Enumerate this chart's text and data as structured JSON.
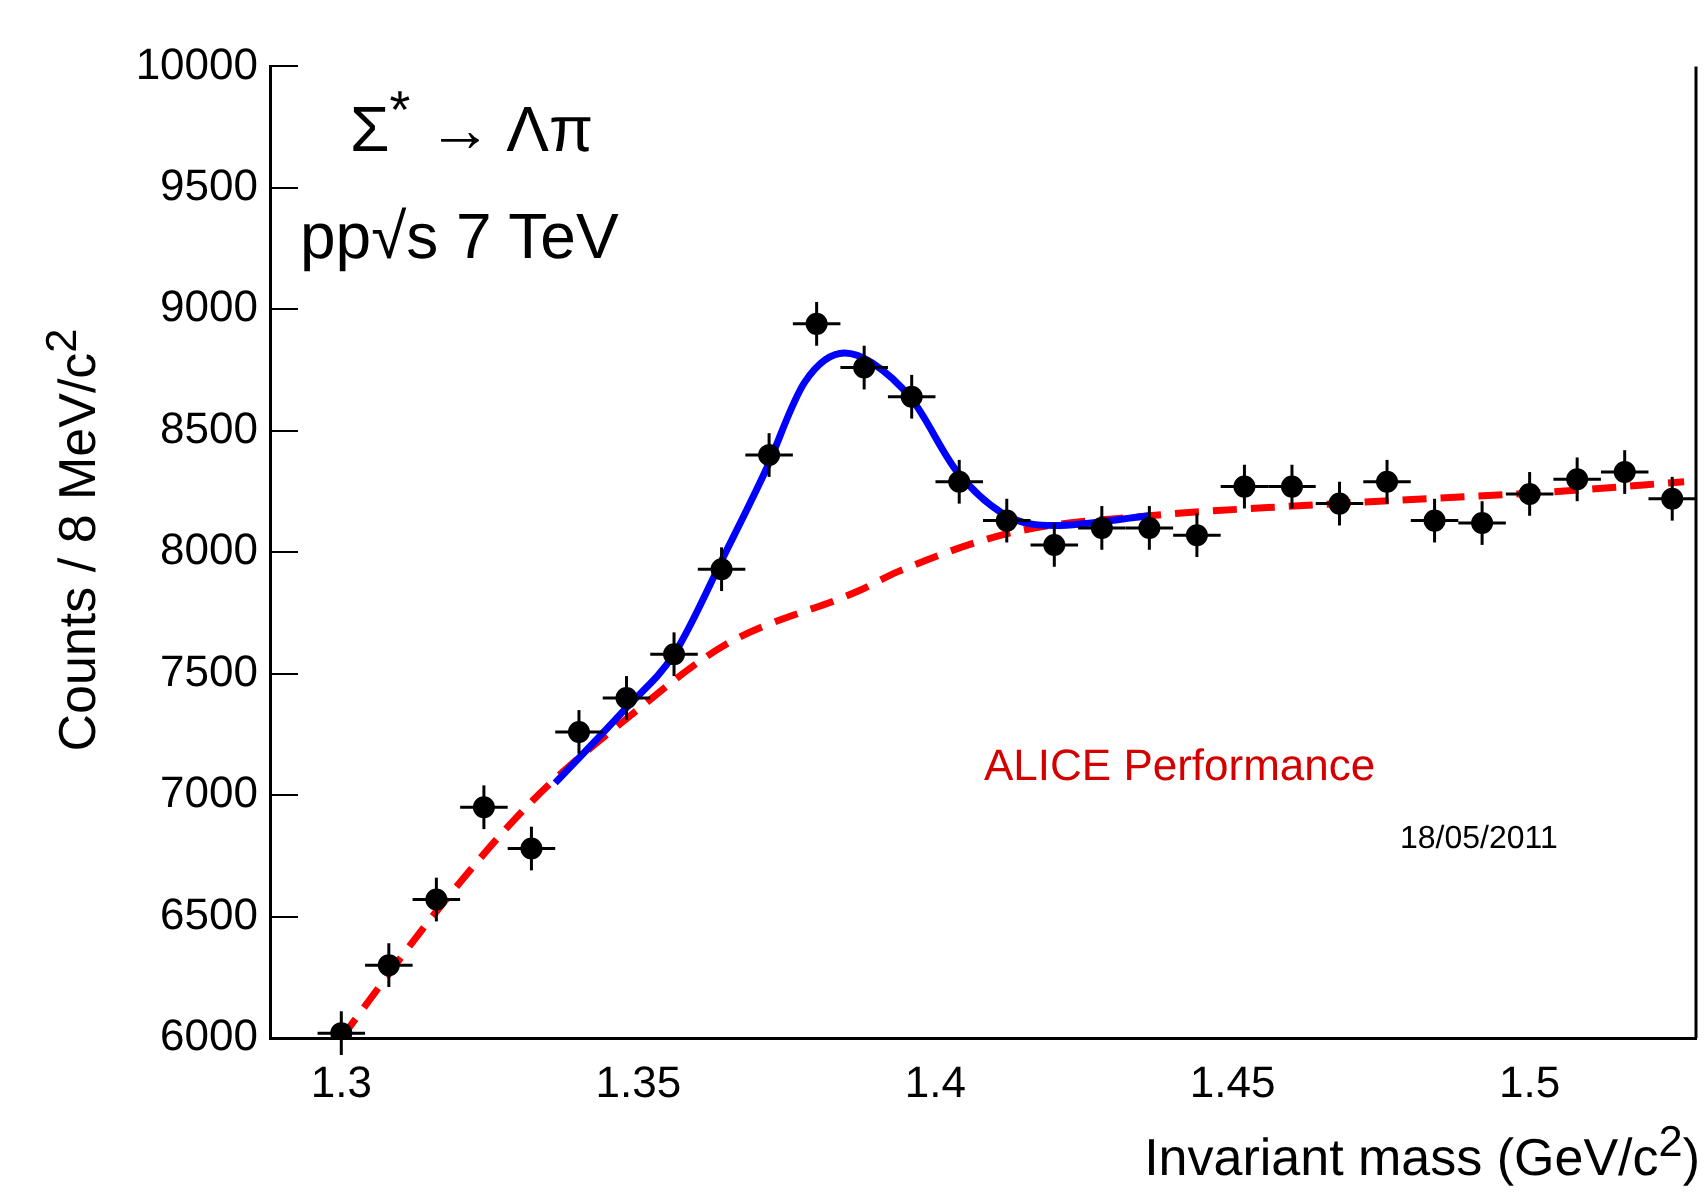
{
  "chart_data": {
    "type": "scatter",
    "xlabel": "Invariant mass (GeV/c$^{2}$)",
    "ylabel": "Counts / 8 MeV/c$^{2}$",
    "annotations": [
      "Σ$^{*}$ → Λπ",
      "pp√s 7 TeV",
      "ALICE Performance",
      "18/05/2011"
    ],
    "xlim": [
      1.288,
      1.528
    ],
    "xticks": [
      1.3,
      1.35,
      1.4,
      1.45,
      1.5
    ],
    "ylim": [
      6000,
      10000
    ],
    "yticks": [
      6000,
      6500,
      7000,
      7500,
      8000,
      8500,
      9000,
      9500,
      10000
    ],
    "grid": false,
    "legend": false,
    "series": [
      {
        "marker": "circle",
        "color": "#000000",
        "x": [
          1.3,
          1.308,
          1.316,
          1.324,
          1.332,
          1.34,
          1.348,
          1.356,
          1.364,
          1.372,
          1.38,
          1.388,
          1.396,
          1.404,
          1.412,
          1.42,
          1.428,
          1.436,
          1.444,
          1.452,
          1.46,
          1.468,
          1.476,
          1.484,
          1.492,
          1.5,
          1.508,
          1.516,
          1.524
        ],
        "values": [
          6020,
          6300,
          6570,
          6950,
          6780,
          7260,
          7400,
          7580,
          7930,
          8400,
          8940,
          8760,
          8640,
          8290,
          8130,
          8030,
          8100,
          8100,
          8070,
          8270,
          8270,
          8200,
          8290,
          8130,
          8120,
          8240,
          8300,
          8330,
          8220
        ],
        "errors": [
          90,
          90,
          90,
          90,
          90,
          90,
          90,
          90,
          90,
          90,
          90,
          90,
          90,
          90,
          90,
          90,
          90,
          90,
          90,
          90,
          90,
          90,
          90,
          90,
          90,
          90,
          90,
          90,
          90
        ],
        "xerrors": [
          0.004,
          0.004,
          0.004,
          0.004,
          0.004,
          0.004,
          0.004,
          0.004,
          0.004,
          0.004,
          0.004,
          0.004,
          0.004,
          0.004,
          0.004,
          0.004,
          0.004,
          0.004,
          0.004,
          0.004,
          0.004,
          0.004,
          0.004,
          0.004,
          0.004,
          0.004,
          0.004,
          0.004,
          0.004
        ]
      },
      {
        "type": "line",
        "color": "#0000ff",
        "line_style": "solid",
        "x": [
          1.336,
          1.348,
          1.356,
          1.3647,
          1.3713,
          1.378,
          1.3847,
          1.3893,
          1.396,
          1.4037,
          1.412,
          1.42,
          1.436
        ],
        "values": [
          7050,
          7360,
          7580,
          8000,
          8330,
          8700,
          8820,
          8780,
          8630,
          8330,
          8150,
          8110,
          8150
        ]
      },
      {
        "type": "line",
        "color": "#ff0000",
        "line_style": "dashed",
        "x": [
          1.3,
          1.3163,
          1.3323,
          1.3483,
          1.3647,
          1.387,
          1.3937,
          1.4127,
          1.436,
          1.4603,
          1.4827,
          1.5047,
          1.526
        ],
        "values": [
          6000,
          6530,
          6980,
          7320,
          7620,
          7840,
          7920,
          8080,
          8150,
          8190,
          8220,
          8250,
          8290
        ]
      }
    ]
  }
}
